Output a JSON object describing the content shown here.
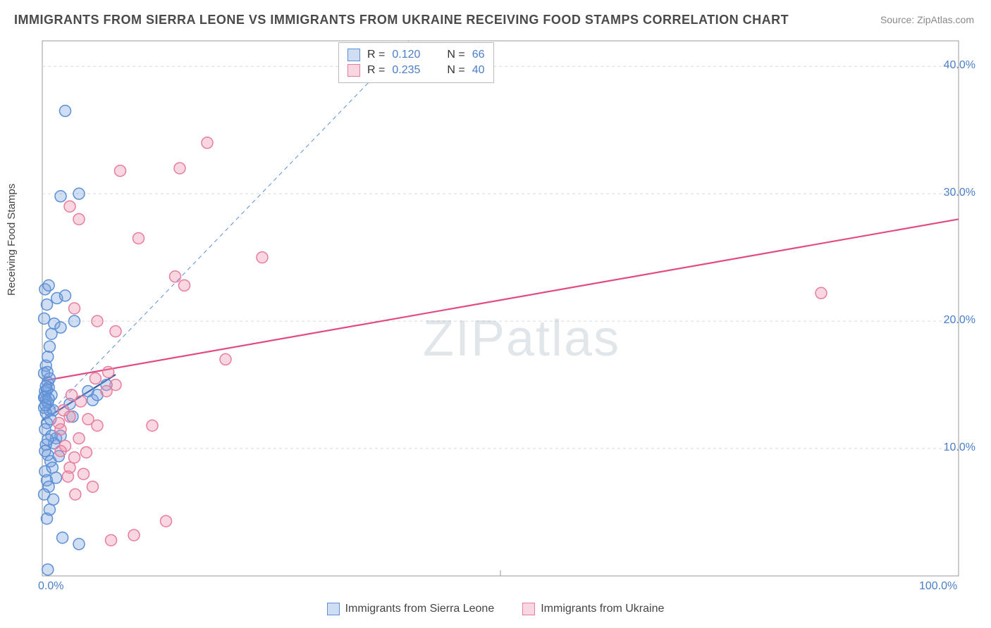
{
  "title": "IMMIGRANTS FROM SIERRA LEONE VS IMMIGRANTS FROM UKRAINE RECEIVING FOOD STAMPS CORRELATION CHART",
  "source": "Source: ZipAtlas.com",
  "ylabel": "Receiving Food Stamps",
  "watermark": "ZIPatlas",
  "chart": {
    "type": "scatter",
    "xlim": [
      0,
      100
    ],
    "ylim": [
      0,
      42
    ],
    "x_ticks": [
      0,
      100
    ],
    "x_tick_labels": [
      "0.0%",
      "100.0%"
    ],
    "y_ticks": [
      10,
      20,
      30,
      40
    ],
    "y_tick_labels": [
      "10.0%",
      "20.0%",
      "30.0%",
      "40.0%"
    ],
    "background_color": "#ffffff",
    "grid_color": "#d9d9d9",
    "marker_radius": 8,
    "marker_stroke_width": 1.5,
    "series": [
      {
        "name": "Immigrants from Sierra Leone",
        "fill": "rgba(120,160,220,0.35)",
        "stroke": "#5b8fd6",
        "r_value": "0.120",
        "n_value": "66",
        "regression": {
          "x1": 0,
          "y1": 12.2,
          "x2": 8,
          "y2": 15.8,
          "color": "#2e5aa0",
          "width": 2.2,
          "dash": "none"
        },
        "guide_line": {
          "x1": 0,
          "y1": 12.2,
          "x2": 40,
          "y2": 42,
          "color": "#5b8fd6",
          "width": 1,
          "dash": "6 5"
        },
        "points": [
          [
            0.2,
            13.2
          ],
          [
            0.3,
            14.1
          ],
          [
            0.5,
            12.0
          ],
          [
            0.4,
            13.8
          ],
          [
            0.6,
            15.2
          ],
          [
            0.8,
            13.0
          ],
          [
            0.3,
            11.5
          ],
          [
            0.7,
            14.8
          ],
          [
            1.0,
            14.2
          ],
          [
            1.2,
            13.0
          ],
          [
            0.4,
            10.3
          ],
          [
            0.6,
            9.5
          ],
          [
            0.9,
            9.0
          ],
          [
            0.3,
            8.2
          ],
          [
            0.5,
            7.5
          ],
          [
            0.7,
            7.0
          ],
          [
            0.2,
            6.4
          ],
          [
            1.1,
            8.5
          ],
          [
            1.5,
            10.8
          ],
          [
            2.0,
            11.0
          ],
          [
            0.4,
            16.5
          ],
          [
            0.6,
            17.2
          ],
          [
            0.8,
            18.0
          ],
          [
            1.0,
            19.0
          ],
          [
            1.3,
            19.8
          ],
          [
            1.6,
            21.8
          ],
          [
            0.5,
            21.3
          ],
          [
            0.3,
            22.5
          ],
          [
            0.7,
            22.8
          ],
          [
            2.5,
            22.0
          ],
          [
            3.5,
            20.0
          ],
          [
            2.0,
            19.5
          ],
          [
            0.2,
            20.2
          ],
          [
            2.0,
            29.8
          ],
          [
            2.5,
            36.5
          ],
          [
            4.0,
            30.0
          ],
          [
            5.0,
            14.5
          ],
          [
            5.5,
            13.8
          ],
          [
            6.0,
            14.2
          ],
          [
            7.0,
            15.0
          ],
          [
            3.0,
            13.5
          ],
          [
            3.3,
            12.5
          ],
          [
            2.2,
            3.0
          ],
          [
            4.0,
            2.5
          ],
          [
            0.5,
            4.5
          ],
          [
            0.8,
            5.2
          ],
          [
            1.2,
            6.0
          ],
          [
            1.5,
            7.7
          ],
          [
            0.6,
            0.5
          ],
          [
            0.2,
            15.9
          ],
          [
            0.3,
            14.5
          ],
          [
            0.4,
            12.8
          ],
          [
            0.6,
            13.6
          ],
          [
            0.8,
            15.5
          ],
          [
            0.2,
            14.0
          ],
          [
            0.35,
            13.4
          ],
          [
            0.5,
            14.6
          ],
          [
            0.7,
            13.9
          ],
          [
            0.9,
            12.3
          ],
          [
            1.0,
            11.0
          ],
          [
            1.3,
            10.4
          ],
          [
            1.8,
            9.4
          ],
          [
            0.3,
            9.8
          ],
          [
            0.6,
            10.7
          ],
          [
            0.4,
            14.9
          ],
          [
            0.55,
            16.0
          ]
        ]
      },
      {
        "name": "Immigrants from Ukraine",
        "fill": "rgba(235,140,165,0.35)",
        "stroke": "#e87ca0",
        "r_value": "0.235",
        "n_value": "40",
        "regression": {
          "x1": 0,
          "y1": 15.3,
          "x2": 100,
          "y2": 28.0,
          "color": "#e14b82",
          "width": 2.2,
          "dash": "none"
        },
        "points": [
          [
            2.0,
            11.5
          ],
          [
            2.5,
            10.2
          ],
          [
            3.0,
            8.5
          ],
          [
            3.5,
            9.3
          ],
          [
            4.0,
            10.8
          ],
          [
            5.0,
            12.3
          ],
          [
            6.0,
            11.8
          ],
          [
            7.0,
            14.5
          ],
          [
            8.0,
            15.0
          ],
          [
            12.0,
            11.8
          ],
          [
            13.5,
            4.3
          ],
          [
            10.0,
            3.2
          ],
          [
            7.5,
            2.8
          ],
          [
            5.5,
            7.0
          ],
          [
            4.5,
            8.0
          ],
          [
            2.0,
            9.8
          ],
          [
            3.0,
            12.5
          ],
          [
            4.2,
            13.7
          ],
          [
            5.8,
            15.5
          ],
          [
            7.2,
            16.0
          ],
          [
            20.0,
            17.0
          ],
          [
            8.0,
            19.2
          ],
          [
            6.0,
            20.0
          ],
          [
            3.5,
            21.0
          ],
          [
            10.5,
            26.5
          ],
          [
            14.5,
            23.5
          ],
          [
            15.5,
            22.8
          ],
          [
            8.5,
            31.8
          ],
          [
            15.0,
            32.0
          ],
          [
            18.0,
            34.0
          ],
          [
            24.0,
            25.0
          ],
          [
            4.0,
            28.0
          ],
          [
            3.0,
            29.0
          ],
          [
            85.0,
            22.2
          ],
          [
            2.3,
            13.0
          ],
          [
            3.2,
            14.2
          ],
          [
            1.8,
            12.0
          ],
          [
            2.8,
            7.8
          ],
          [
            3.6,
            6.4
          ],
          [
            4.8,
            9.7
          ]
        ]
      }
    ]
  },
  "stat_box": {
    "r_label": "R =",
    "n_label": "N ="
  },
  "bottom_legend": {
    "items": [
      {
        "label": "Immigrants from Sierra Leone",
        "fill": "rgba(120,160,220,0.35)",
        "stroke": "#5b8fd6"
      },
      {
        "label": "Immigrants from Ukraine",
        "fill": "rgba(235,140,165,0.35)",
        "stroke": "#e87ca0"
      }
    ]
  }
}
